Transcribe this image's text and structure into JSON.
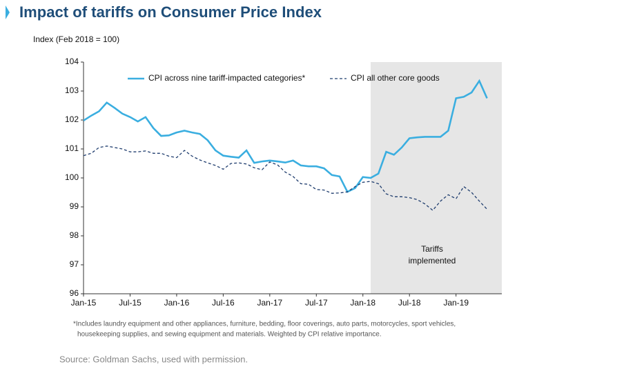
{
  "chart_data": {
    "type": "line",
    "title": "Impact of tariffs on Consumer Price Index",
    "y_axis_label": "Index (Feb 2018 = 100)",
    "categories": [
      "Jan-15",
      null,
      null,
      null,
      null,
      null,
      "Jul-15",
      null,
      null,
      null,
      null,
      null,
      "Jan-16",
      null,
      null,
      null,
      null,
      null,
      "Jul-16",
      null,
      null,
      null,
      null,
      null,
      "Jan-17",
      null,
      null,
      null,
      null,
      null,
      "Jul-17",
      null,
      null,
      null,
      null,
      null,
      "Jan-18",
      null,
      null,
      null,
      null,
      null,
      "Jul-18",
      null,
      null,
      null,
      null,
      null,
      "Jan-19",
      null,
      null,
      null,
      null
    ],
    "series": [
      {
        "name": "CPI across nine tariff-impacted categories*",
        "color": "#3aaee0",
        "dashed": false,
        "values": [
          101.98,
          102.15,
          102.3,
          102.6,
          102.42,
          102.22,
          102.1,
          101.95,
          102.1,
          101.72,
          101.45,
          101.47,
          101.57,
          101.63,
          101.57,
          101.52,
          101.3,
          100.95,
          100.77,
          100.73,
          100.7,
          100.95,
          100.52,
          100.57,
          100.6,
          100.57,
          100.53,
          100.6,
          100.43,
          100.4,
          100.4,
          100.33,
          100.1,
          100.05,
          99.52,
          99.65,
          100.03,
          100.0,
          100.15,
          100.9,
          100.8,
          101.05,
          101.37,
          101.4,
          101.42,
          101.42,
          101.42,
          101.63,
          102.75,
          102.8,
          102.95,
          103.35,
          102.75
        ]
      },
      {
        "name": "CPI all other core goods",
        "color": "#1f3d6e",
        "dashed": true,
        "values": [
          100.77,
          100.85,
          101.05,
          101.1,
          101.05,
          101.0,
          100.9,
          100.9,
          100.93,
          100.85,
          100.85,
          100.75,
          100.7,
          100.95,
          100.75,
          100.62,
          100.52,
          100.43,
          100.3,
          100.5,
          100.52,
          100.48,
          100.35,
          100.28,
          100.55,
          100.45,
          100.2,
          100.05,
          99.8,
          99.78,
          99.6,
          99.58,
          99.47,
          99.48,
          99.52,
          99.7,
          99.85,
          99.88,
          99.8,
          99.45,
          99.35,
          99.35,
          99.32,
          99.25,
          99.1,
          98.88,
          99.2,
          99.42,
          99.28,
          99.7,
          99.5,
          99.2,
          98.92
        ]
      }
    ],
    "ylim": [
      96,
      104
    ],
    "yticks": [
      96,
      97,
      98,
      99,
      100,
      101,
      102,
      103,
      104
    ],
    "shaded_region": {
      "from": 37,
      "color": "#e6e6e6",
      "label": [
        "Tariffs",
        "implemented"
      ]
    },
    "footnote": [
      "*Includes laundry equipment and other appliances, furniture, bedding, floor coverings, auto parts, motorcycles, sport vehicles,",
      "housekeeping supplies, and sewing equipment and materials. Weighted by CPI relative importance."
    ],
    "source": "Source: Goldman Sachs, used with permission."
  }
}
